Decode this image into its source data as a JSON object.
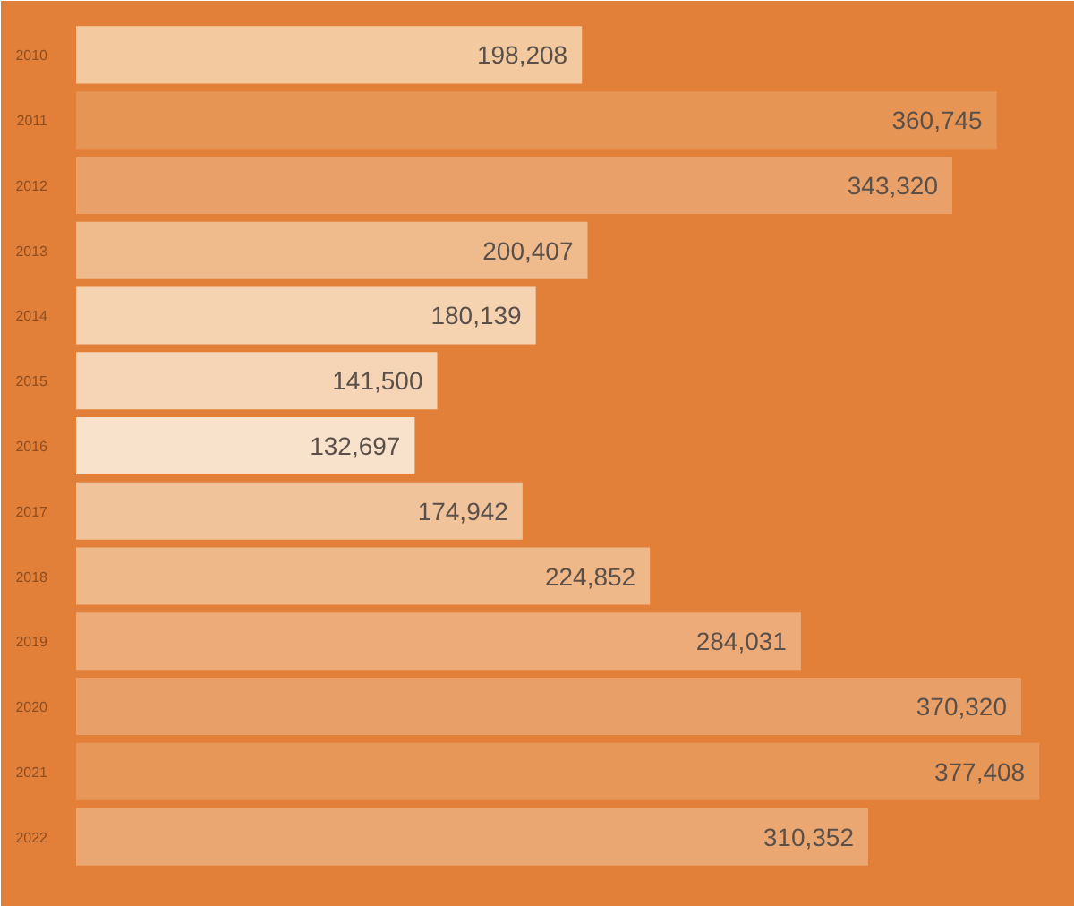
{
  "chart_data": {
    "type": "bar",
    "orientation": "horizontal",
    "categories": [
      "2010",
      "2011",
      "2012",
      "2013",
      "2014",
      "2015",
      "2016",
      "2017",
      "2018",
      "2019",
      "2020",
      "2021",
      "2022"
    ],
    "values": [
      198208,
      360745,
      343320,
      200407,
      180139,
      141500,
      132697,
      174942,
      224852,
      284031,
      370320,
      377408,
      310352
    ],
    "value_labels": [
      "198,208",
      "360,745",
      "343,320",
      "200,407",
      "180,139",
      "141,500",
      "132,697",
      "174,942",
      "224,852",
      "284,031",
      "370,320",
      "377,408",
      "310,352"
    ],
    "colors": [
      "#f3c9a0",
      "#e79555",
      "#e9a169",
      "#f0bb8c",
      "#f5d3b1",
      "#f5d5b5",
      "#f8e2cc",
      "#f1c39a",
      "#efb888",
      "#ecab78",
      "#e9a068",
      "#e79758",
      "#eaa772"
    ]
  }
}
